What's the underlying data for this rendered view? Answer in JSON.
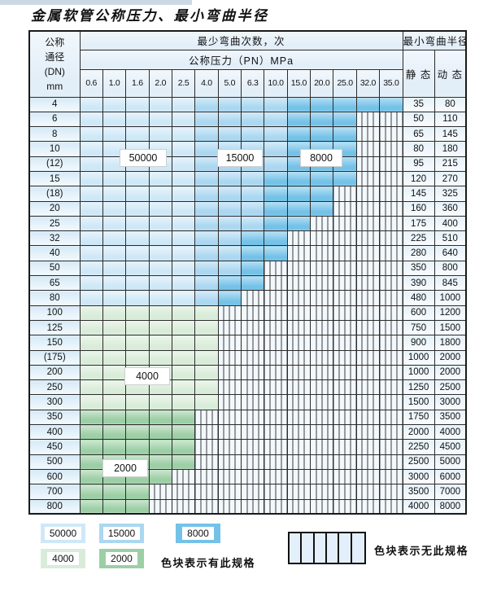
{
  "page": {
    "title": "金属软管公称压力、最小弯曲半径"
  },
  "table": {
    "header": {
      "dn_lines": [
        "公称",
        "通径",
        "(DN)",
        "mm"
      ],
      "cycles_title": "最少弯曲次数，次",
      "pressure_title": "公称压力（PN）MPa",
      "radius_title": "最小弯曲半径",
      "static_label": "静 态",
      "dynamic_label": "动 态",
      "pressures": [
        "0.6",
        "1.0",
        "1.6",
        "2.0",
        "2.5",
        "4.0",
        "5.0",
        "6.3",
        "10.0",
        "15.0",
        "20.0",
        "25.0",
        "32.0",
        "35.0"
      ]
    },
    "overlay_labels": [
      "50000",
      "15000",
      "8000",
      "4000",
      "2000"
    ],
    "cell_code_meaning": {
      "L": "50000 cycles",
      "M": "15000 cycles",
      "D": "8000 cycles",
      "g": "4000 cycles",
      "G": "2000 cycles",
      "X": "no spec (hatched)"
    },
    "rows": [
      {
        "dn": "4",
        "cells": "LLLLLMMMMDDDDD",
        "static": "35",
        "dynamic": "80"
      },
      {
        "dn": "6",
        "cells": "LLLLLMMMMDDDXX",
        "static": "50",
        "dynamic": "110"
      },
      {
        "dn": "8",
        "cells": "LLLLLMMMMDDDXX",
        "static": "65",
        "dynamic": "145"
      },
      {
        "dn": "10",
        "cells": "LLLLLMMMMDDDXX",
        "static": "80",
        "dynamic": "180"
      },
      {
        "dn": "(12)",
        "cells": "LLLLLMMMMDDDXX",
        "static": "95",
        "dynamic": "215"
      },
      {
        "dn": "15",
        "cells": "LLLLLMMMDDDDXX",
        "static": "120",
        "dynamic": "270"
      },
      {
        "dn": "(18)",
        "cells": "LLLLLMMMDDDXXX",
        "static": "145",
        "dynamic": "325"
      },
      {
        "dn": "20",
        "cells": "LLLLLMMMDDDXXX",
        "static": "160",
        "dynamic": "360"
      },
      {
        "dn": "25",
        "cells": "LLLLLMMMDDXXXX",
        "static": "175",
        "dynamic": "400"
      },
      {
        "dn": "32",
        "cells": "LLLLLMMDDXXXXX",
        "static": "225",
        "dynamic": "510"
      },
      {
        "dn": "40",
        "cells": "LLLLLMMDDXXXXX",
        "static": "280",
        "dynamic": "640"
      },
      {
        "dn": "50",
        "cells": "LLLLLMMDXXXXXX",
        "static": "350",
        "dynamic": "800"
      },
      {
        "dn": "65",
        "cells": "LLLLLMDDXXXXXX",
        "static": "390",
        "dynamic": "845"
      },
      {
        "dn": "80",
        "cells": "LLLLLMDXXXXXXX",
        "static": "480",
        "dynamic": "1000"
      },
      {
        "dn": "100",
        "cells": "ggggggXXXXXXXX",
        "static": "600",
        "dynamic": "1200"
      },
      {
        "dn": "125",
        "cells": "ggggggXXXXXXXX",
        "static": "750",
        "dynamic": "1500"
      },
      {
        "dn": "150",
        "cells": "ggggggXXXXXXXX",
        "static": "900",
        "dynamic": "1800"
      },
      {
        "dn": "(175)",
        "cells": "ggggggXXXXXXXX",
        "static": "1000",
        "dynamic": "2000"
      },
      {
        "dn": "200",
        "cells": "ggggggXXXXXXXX",
        "static": "1000",
        "dynamic": "2000"
      },
      {
        "dn": "250",
        "cells": "ggggggXXXXXXXX",
        "static": "1250",
        "dynamic": "2500"
      },
      {
        "dn": "300",
        "cells": "ggggggXXXXXXXX",
        "static": "1500",
        "dynamic": "3000"
      },
      {
        "dn": "350",
        "cells": "GGGGGXXXXXXXXX",
        "static": "1750",
        "dynamic": "3500"
      },
      {
        "dn": "400",
        "cells": "GGGGGXXXXXXXXX",
        "static": "2000",
        "dynamic": "4000"
      },
      {
        "dn": "450",
        "cells": "GGGGGXXXXXXXXX",
        "static": "2250",
        "dynamic": "4500"
      },
      {
        "dn": "500",
        "cells": "GGGGGXXXXXXXXX",
        "static": "2500",
        "dynamic": "5000"
      },
      {
        "dn": "600",
        "cells": "GGGGXXXXXXXXXX",
        "static": "3000",
        "dynamic": "6000"
      },
      {
        "dn": "700",
        "cells": "GGGXXXXXXXXXXX",
        "static": "3500",
        "dynamic": "7000"
      },
      {
        "dn": "800",
        "cells": "GGGXXXXXXXXXXX",
        "static": "4000",
        "dynamic": "8000"
      }
    ]
  },
  "legend": {
    "items": [
      {
        "value": "50000"
      },
      {
        "value": "15000"
      },
      {
        "value": "8000"
      },
      {
        "value": "4000"
      },
      {
        "value": "2000"
      }
    ],
    "has_spec_label": "色块表示有此规格",
    "no_spec_label": "色块表示无此规格"
  },
  "colors": {
    "cycles_50000": "#cfe8f7",
    "cycles_15000": "#abd7f1",
    "cycles_8000": "#74c2e8",
    "cycles_4000": "#d9ecd9",
    "cycles_2000": "#9ccfa5",
    "no_spec_fill": "#f2f8fc",
    "header_fill": "#e2eef8",
    "grid_line": "#2b2b2b"
  }
}
